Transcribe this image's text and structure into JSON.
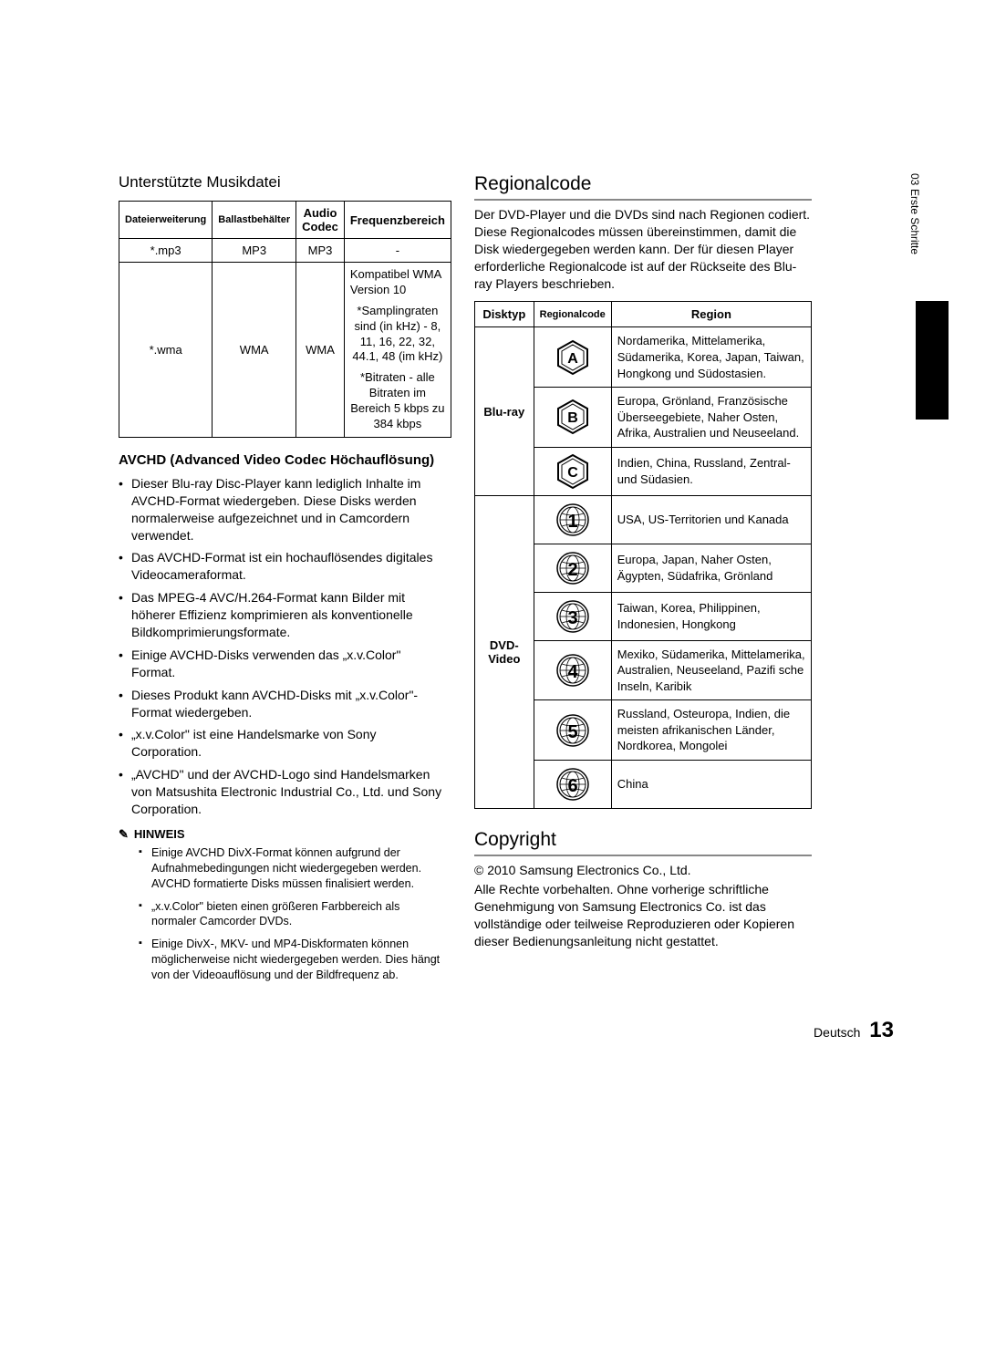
{
  "side": {
    "chapter": "03",
    "name": "Erste Schritte"
  },
  "left": {
    "music_heading": "Unterstützte Musikdatei",
    "music_table": {
      "headers": [
        "Dateierweiterung",
        "Ballastbehälter",
        "Audio Codec",
        "Frequenzbereich"
      ],
      "rows": [
        {
          "ext": "*.mp3",
          "cont": "MP3",
          "codec": "MP3",
          "freq": "-"
        },
        {
          "ext": "*.wma",
          "cont": "WMA",
          "codec": "WMA",
          "freq_blocks": [
            "Kompatibel WMA Version 10",
            "*Samplingraten sind (in kHz) - 8, 11, 16, 22, 32, 44.1, 48 (im kHz)",
            "*Bitraten - alle Bitraten im Bereich 5 kbps zu 384 kbps"
          ]
        }
      ]
    },
    "avchd_heading": "AVCHD (Advanced Video Codec Höchauflösung)",
    "avchd_bullets": [
      "Dieser Blu-ray Disc-Player kann lediglich Inhalte im AVCHD-Format wiedergeben. Diese Disks werden normalerweise aufgezeichnet und in Camcordern verwendet.",
      "Das AVCHD-Format ist ein hochauflösendes digitales Videocameraformat.",
      "Das MPEG-4 AVC/H.264-Format kann Bilder mit höherer Effizienz komprimieren als konventionelle Bildkomprimierungsformate.",
      "Einige AVCHD-Disks verwenden das „x.v.Color\" Format.",
      "Dieses Produkt kann AVCHD-Disks mit „x.v.Color\"-Format wiedergeben.",
      "„x.v.Color\" ist eine Handelsmarke von Sony Corporation.",
      "„AVCHD\" und der AVCHD-Logo sind Handelsmarken von Matsushita Electronic Industrial Co., Ltd. und Sony Corporation."
    ],
    "hinweis_label": "HINWEIS",
    "hinweis_notes": [
      "Einige AVCHD DivX-Format können aufgrund der Aufnahmebedingungen nicht wiedergegeben werden. AVCHD formatierte Disks müssen finalisiert werden.",
      "„x.v.Color\" bieten einen größeren Farbbereich als normaler Camcorder DVDs.",
      "Einige DivX-, MKV- und MP4-Diskformaten können möglicherweise nicht wiedergegeben werden. Dies hängt von der Videoauflösung und der Bildfrequenz ab."
    ]
  },
  "right": {
    "regional_heading": "Regionalcode",
    "regional_intro": "Der DVD-Player und die DVDs sind nach Regionen codiert. Diese Regionalcodes müssen übereinstimmen, damit die Disk wiedergegeben werden kann. Der für diesen Player erforderliche Regionalcode ist auf der Rückseite des Blu-ray Players beschrieben.",
    "region_table": {
      "headers": [
        "Disktyp",
        "Regionalcode",
        "Region"
      ],
      "bluray_label": "Blu-ray",
      "bluray_rows": [
        {
          "icon": "A",
          "region": "Nordamerika, Mittelamerika, Südamerika, Korea, Japan, Taiwan, Hongkong und Südostasien."
        },
        {
          "icon": "B",
          "region": "Europa, Grönland, Französische Überseegebiete, Naher Osten, Afrika, Australien und Neuseeland."
        },
        {
          "icon": "C",
          "region": "Indien, China, Russland, Zentral- und Südasien."
        }
      ],
      "dvd_label": "DVD-Video",
      "dvd_rows": [
        {
          "icon": "1",
          "region": "USA, US-Territorien und Kanada"
        },
        {
          "icon": "2",
          "region": "Europa, Japan, Naher Osten, Ägypten, Südafrika, Grönland"
        },
        {
          "icon": "3",
          "region": "Taiwan, Korea, Philippinen, Indonesien, Hongkong"
        },
        {
          "icon": "4",
          "region": "Mexiko, Südamerika, Mittelamerika, Australien, Neuseeland, Pazifi sche Inseln, Karibik"
        },
        {
          "icon": "5",
          "region": "Russland, Osteuropa, Indien, die meisten afrikanischen Länder, Nordkorea, Mongolei"
        },
        {
          "icon": "6",
          "region": "China"
        }
      ]
    },
    "copyright_heading": "Copyright",
    "copyright_line": "© 2010 Samsung Electronics Co., Ltd.",
    "copyright_text": "Alle Rechte vorbehalten. Ohne vorherige schriftliche Genehmigung von Samsung Electronics Co. ist das vollständige oder teilweise Reproduzieren oder Kopieren dieser Bedienungsanleitung nicht gestattet."
  },
  "footer": {
    "lang": "Deutsch",
    "page": "13"
  }
}
